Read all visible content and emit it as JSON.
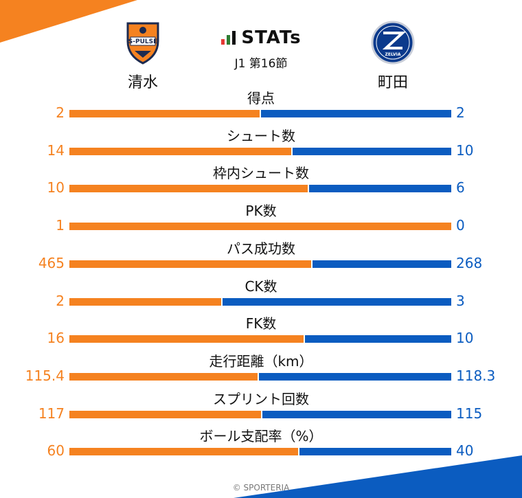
{
  "header": {
    "title": "STATs",
    "round": "J1 第16節",
    "home": {
      "name": "清水",
      "crest_text": "S-PULSE"
    },
    "away": {
      "name": "町田",
      "crest_text": "ZELVIA"
    }
  },
  "colors": {
    "home": "#f58220",
    "away": "#0b5cc0"
  },
  "stats": [
    {
      "label": "得点",
      "home": "2",
      "away": "2"
    },
    {
      "label": "シュート数",
      "home": "14",
      "away": "10"
    },
    {
      "label": "枠内シュート数",
      "home": "10",
      "away": "6"
    },
    {
      "label": "PK数",
      "home": "1",
      "away": "0"
    },
    {
      "label": "パス成功数",
      "home": "465",
      "away": "268"
    },
    {
      "label": "CK数",
      "home": "2",
      "away": "3"
    },
    {
      "label": "FK数",
      "home": "16",
      "away": "10"
    },
    {
      "label": "走行距離（km）",
      "home": "115.4",
      "away": "118.3"
    },
    {
      "label": "スプリント回数",
      "home": "117",
      "away": "115"
    },
    {
      "label": "ボール支配率（%）",
      "home": "60",
      "away": "40"
    }
  ],
  "footer": {
    "copyright": "© SPORTERIA"
  }
}
